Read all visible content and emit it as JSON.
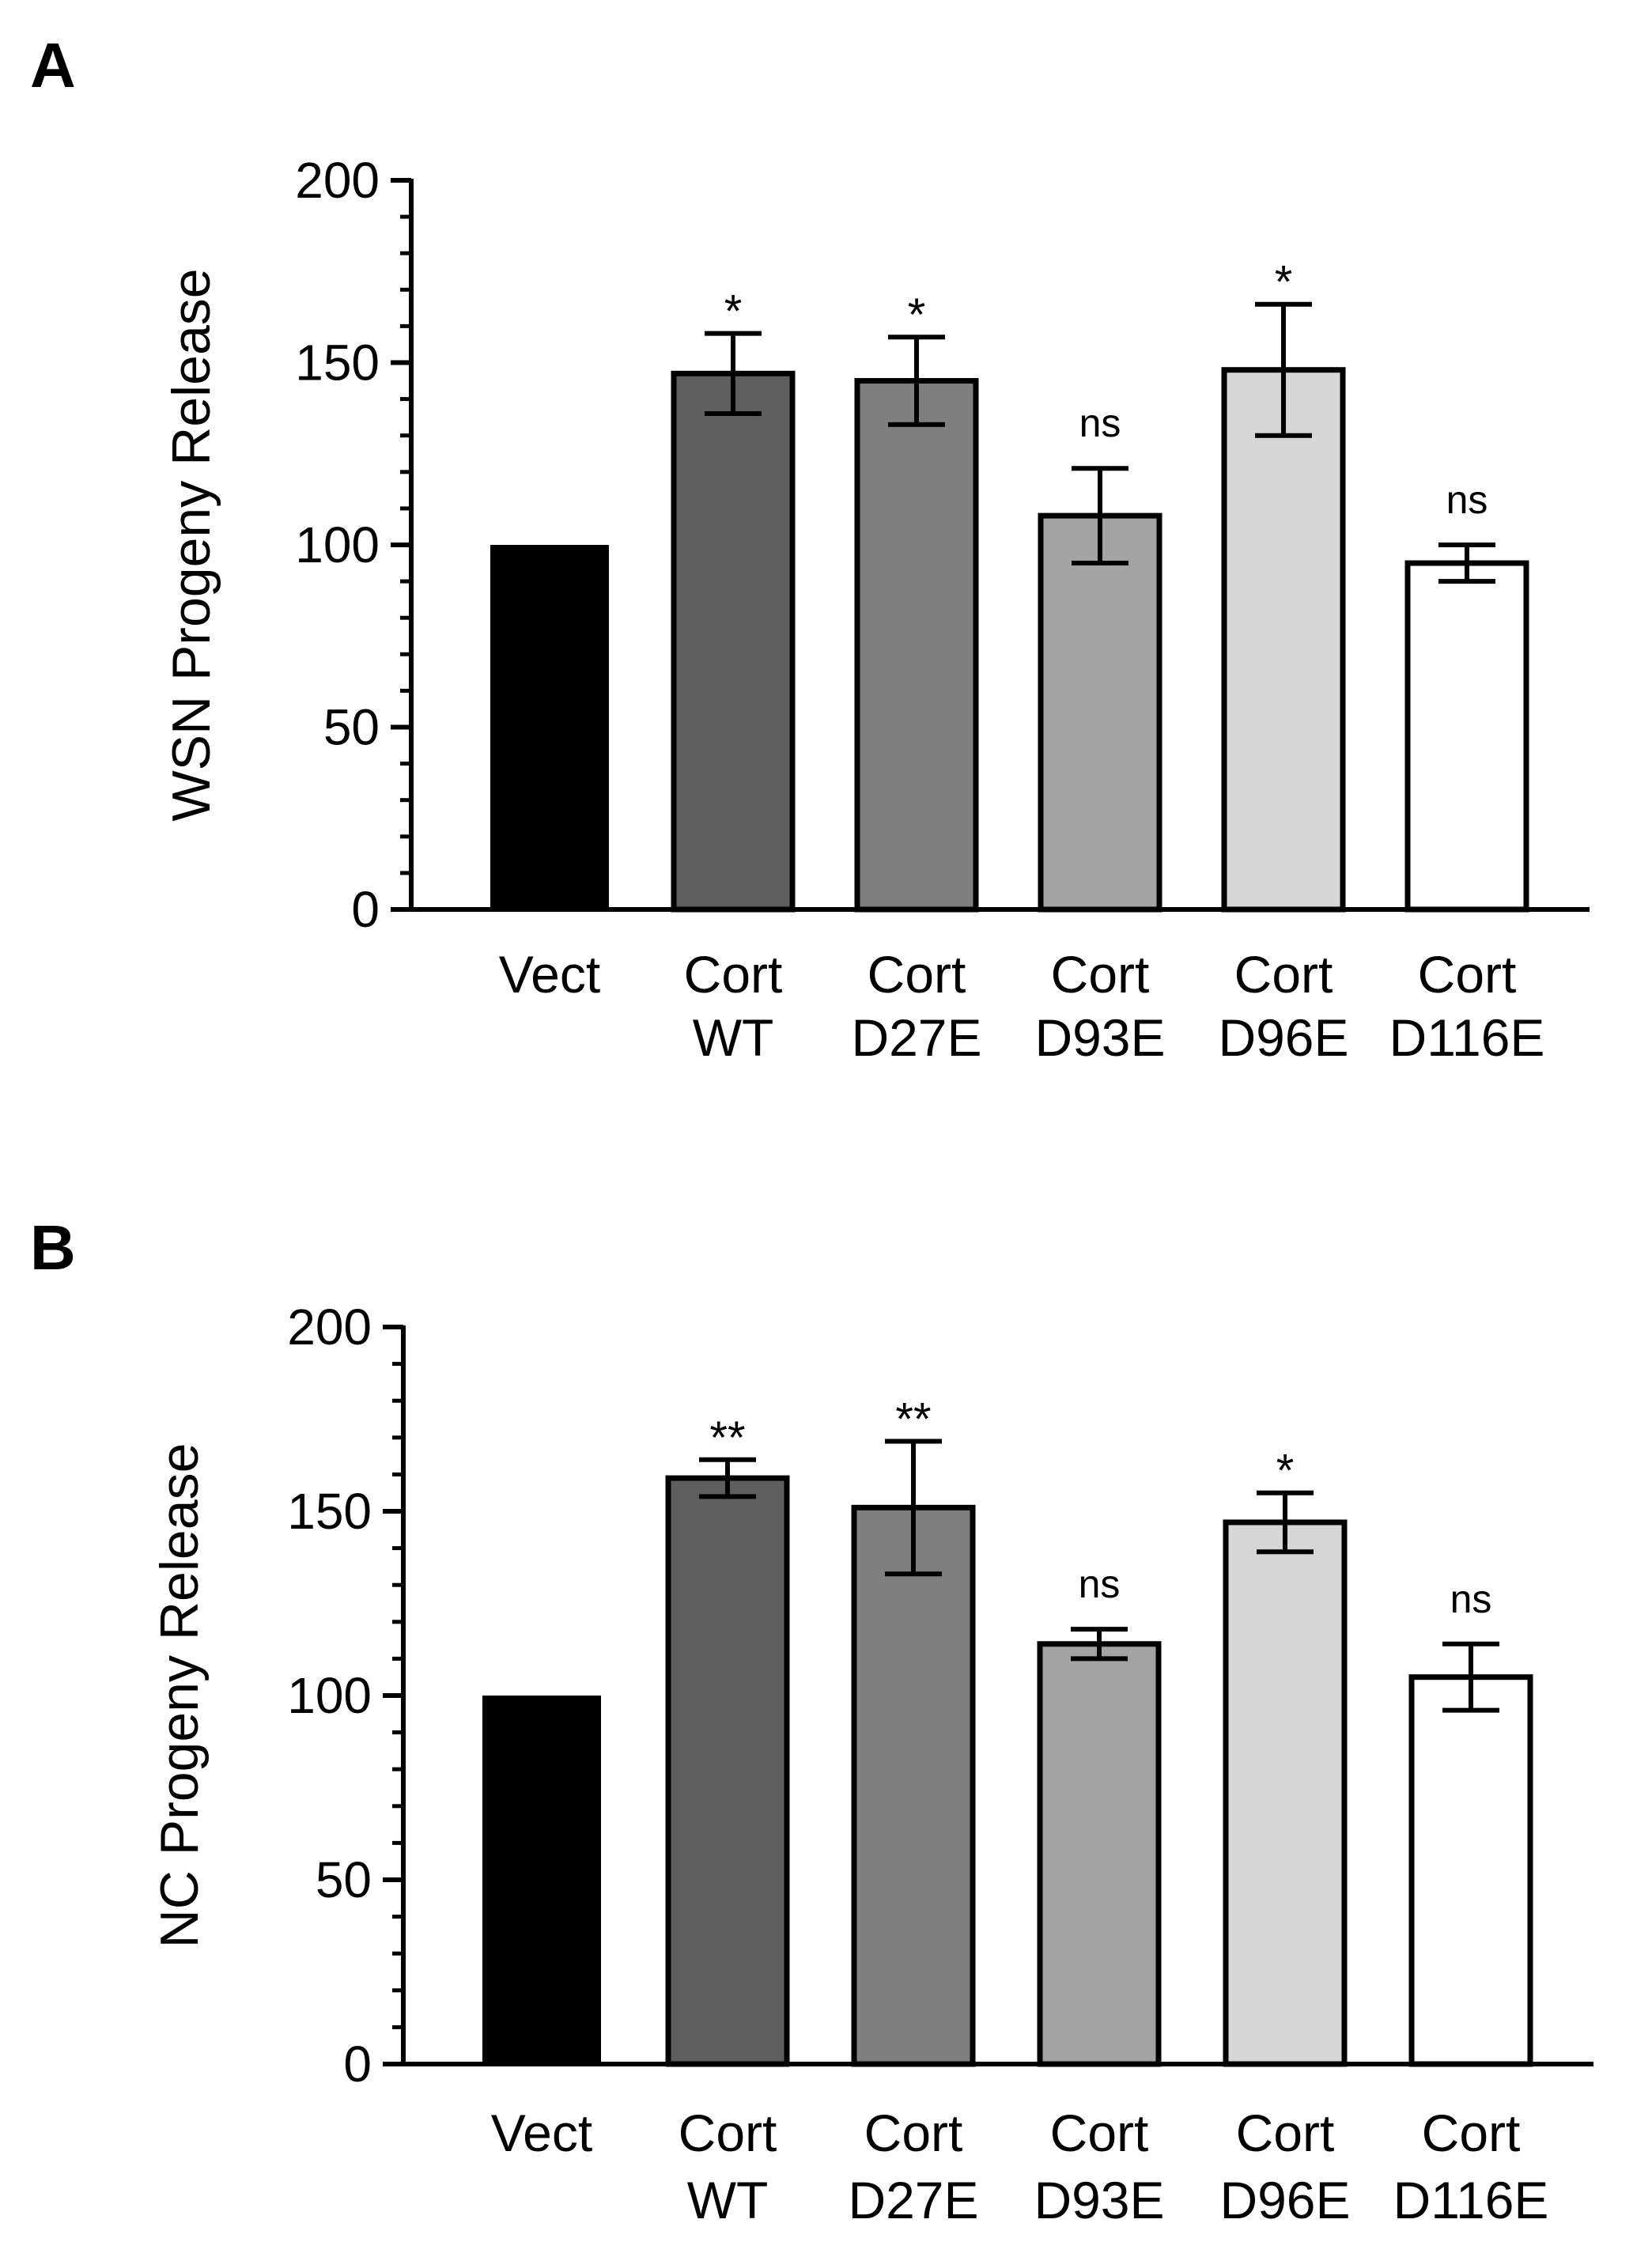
{
  "chart_data": [
    {
      "panel_label": "A",
      "type": "bar",
      "ylabel": "WSN Progeny Release",
      "xlabel": "",
      "ylim": [
        0,
        200
      ],
      "y_major_ticks": [
        0,
        50,
        100,
        150,
        200
      ],
      "y_minor_step": 10,
      "grid": false,
      "categories": [
        {
          "line1": "Vect",
          "line2": ""
        },
        {
          "line1": "Cort",
          "line2": "WT"
        },
        {
          "line1": "Cort",
          "line2": "D27E"
        },
        {
          "line1": "Cort",
          "line2": "D93E"
        },
        {
          "line1": "Cort",
          "line2": "D96E"
        },
        {
          "line1": "Cort",
          "line2": "D116E"
        }
      ],
      "values": [
        100,
        147,
        145,
        108,
        148,
        95
      ],
      "error": [
        0,
        11,
        12,
        13,
        18,
        5
      ],
      "significance": [
        "",
        "*",
        "*",
        "ns",
        "*",
        "ns"
      ],
      "colors": [
        "#000000",
        "#5e5e5e",
        "#7f7f7f",
        "#a3a3a3",
        "#d6d6d6",
        "#ffffff"
      ]
    },
    {
      "panel_label": "B",
      "type": "bar",
      "ylabel": "NC Progeny Release",
      "xlabel": "",
      "ylim": [
        0,
        200
      ],
      "y_major_ticks": [
        0,
        50,
        100,
        150,
        200
      ],
      "y_minor_step": 10,
      "grid": false,
      "categories": [
        {
          "line1": "Vect",
          "line2": ""
        },
        {
          "line1": "Cort",
          "line2": "WT"
        },
        {
          "line1": "Cort",
          "line2": "D27E"
        },
        {
          "line1": "Cort",
          "line2": "D93E"
        },
        {
          "line1": "Cort",
          "line2": "D96E"
        },
        {
          "line1": "Cort",
          "line2": "D116E"
        }
      ],
      "values": [
        100,
        159,
        151,
        114,
        147,
        105
      ],
      "error": [
        0,
        5,
        18,
        4,
        8,
        9
      ],
      "significance": [
        "",
        "**",
        "**",
        "ns",
        "*",
        "ns"
      ],
      "colors": [
        "#000000",
        "#5e5e5e",
        "#7f7f7f",
        "#a3a3a3",
        "#d6d6d6",
        "#ffffff"
      ]
    }
  ]
}
